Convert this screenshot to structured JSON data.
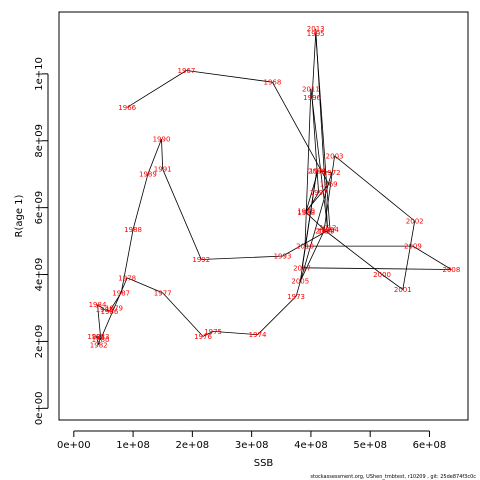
{
  "chart_data": {
    "type": "line",
    "title": "",
    "xlabel": "SSB",
    "ylabel": "R(age 1)",
    "xlim": [
      -25000000,
      665000000
    ],
    "ylim": [
      -350000000,
      11850000000
    ],
    "x_ticks": [
      {
        "v": 0,
        "label": "0e+00"
      },
      {
        "v": 100000000,
        "label": "1e+08"
      },
      {
        "v": 200000000,
        "label": "2e+08"
      },
      {
        "v": 300000000,
        "label": "3e+08"
      },
      {
        "v": 400000000,
        "label": "4e+08"
      },
      {
        "v": 500000000,
        "label": "5e+08"
      },
      {
        "v": 600000000,
        "label": "6e+08"
      }
    ],
    "y_ticks": [
      {
        "v": 0,
        "label": "0e+00"
      },
      {
        "v": 2000000000,
        "label": "2e+09"
      },
      {
        "v": 4000000000,
        "label": "4e+09"
      },
      {
        "v": 6000000000,
        "label": "6e+09"
      },
      {
        "v": 8000000000,
        "label": "8e+09"
      },
      {
        "v": 10000000000,
        "label": "1e+10"
      }
    ],
    "grid": false,
    "legend": "none",
    "line_color": "#000000",
    "label_color": "#ff0000",
    "series": [
      {
        "points": [
          {
            "year": "1966",
            "x": 90000000,
            "y": 9000000000
          },
          {
            "year": "1967",
            "x": 190000000,
            "y": 10100000000
          },
          {
            "year": "1968",
            "x": 335000000,
            "y": 9750000000
          },
          {
            "year": "1969",
            "x": 430000000,
            "y": 6700000000
          },
          {
            "year": "1970",
            "x": 392000000,
            "y": 5900000000
          },
          {
            "year": "1971",
            "x": 412000000,
            "y": 7100000000
          },
          {
            "year": "1972",
            "x": 435000000,
            "y": 7050000000
          },
          {
            "year": "1973",
            "x": 375000000,
            "y": 3350000000
          },
          {
            "year": "1974",
            "x": 310000000,
            "y": 2200000000
          },
          {
            "year": "1975",
            "x": 235000000,
            "y": 2300000000
          },
          {
            "year": "1976",
            "x": 218000000,
            "y": 2150000000
          },
          {
            "year": "1977",
            "x": 150000000,
            "y": 3450000000
          },
          {
            "year": "1978",
            "x": 90000000,
            "y": 3900000000
          },
          {
            "year": "1979",
            "x": 68000000,
            "y": 3000000000
          },
          {
            "year": "1980",
            "x": 45000000,
            "y": 2050000000
          },
          {
            "year": "1981",
            "x": 38000000,
            "y": 2150000000
          },
          {
            "year": "1982",
            "x": 42000000,
            "y": 1900000000
          },
          {
            "year": "1983",
            "x": 45000000,
            "y": 2150000000
          },
          {
            "year": "1984",
            "x": 40000000,
            "y": 3100000000
          },
          {
            "year": "1985",
            "x": 52000000,
            "y": 2950000000
          },
          {
            "year": "1986",
            "x": 60000000,
            "y": 2900000000
          },
          {
            "year": "1987",
            "x": 80000000,
            "y": 3450000000
          },
          {
            "year": "1988",
            "x": 100000000,
            "y": 5350000000
          },
          {
            "year": "1989",
            "x": 125000000,
            "y": 7000000000
          },
          {
            "year": "1990",
            "x": 148000000,
            "y": 8050000000
          },
          {
            "year": "1991",
            "x": 150000000,
            "y": 7150000000
          },
          {
            "year": "1992",
            "x": 215000000,
            "y": 4450000000
          },
          {
            "year": "1993",
            "x": 352000000,
            "y": 4550000000
          },
          {
            "year": "1994",
            "x": 432000000,
            "y": 5350000000
          },
          {
            "year": "1995",
            "x": 408000000,
            "y": 11200000000
          },
          {
            "year": "1996",
            "x": 402000000,
            "y": 9300000000
          },
          {
            "year": "1997",
            "x": 413000000,
            "y": 6450000000
          },
          {
            "year": "1998",
            "x": 392000000,
            "y": 5850000000
          },
          {
            "year": "1999",
            "x": 425000000,
            "y": 5300000000
          },
          {
            "year": "2000",
            "x": 520000000,
            "y": 4000000000
          },
          {
            "year": "2001",
            "x": 555000000,
            "y": 3550000000
          },
          {
            "year": "2002",
            "x": 575000000,
            "y": 5600000000
          },
          {
            "year": "2003",
            "x": 440000000,
            "y": 7550000000
          },
          {
            "year": "2004",
            "x": 422000000,
            "y": 5300000000
          },
          {
            "year": "2005",
            "x": 382000000,
            "y": 3800000000
          },
          {
            "year": "2006",
            "x": 410000000,
            "y": 7100000000
          },
          {
            "year": "2007",
            "x": 385000000,
            "y": 4200000000
          },
          {
            "year": "2008",
            "x": 637000000,
            "y": 4150000000
          },
          {
            "year": "2009",
            "x": 572000000,
            "y": 4850000000
          },
          {
            "year": "2010",
            "x": 390000000,
            "y": 4850000000
          },
          {
            "year": "2011",
            "x": 400000000,
            "y": 9550000000
          },
          {
            "year": "2012",
            "x": 428000000,
            "y": 5400000000
          },
          {
            "year": "2013",
            "x": 408000000,
            "y": 11350000000
          }
        ]
      }
    ]
  },
  "footer": {
    "text": "stockassessment.org,  UShen_tmbtest,  r10209 ,  git:  25de874f3c0c"
  }
}
